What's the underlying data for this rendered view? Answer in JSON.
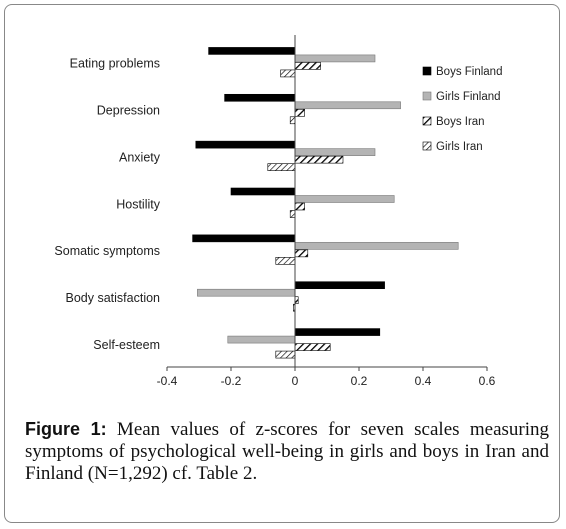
{
  "figure": {
    "label": "Figure 1:",
    "caption": " Mean values of z-scores for seven scales measuring symptoms of psychological well-being in girls and boys in Iran and Finland (N=1,292) cf. Table 2."
  },
  "colors": {
    "boys_finland": "#000000",
    "girls_finland": "#b4b4b4",
    "axis": "#444444"
  },
  "chart_data": {
    "type": "bar",
    "orientation": "horizontal",
    "categories": [
      "Eating problems",
      "Depression",
      "Anxiety",
      "Hostility",
      "Somatic symptoms",
      "Body satisfaction",
      "Self-esteem"
    ],
    "series": [
      {
        "name": "Boys Finland",
        "fill": "solid-black",
        "values": [
          -0.27,
          -0.22,
          -0.31,
          -0.2,
          -0.32,
          0.28,
          0.265
        ]
      },
      {
        "name": "Girls Finland",
        "fill": "solid-gray",
        "values": [
          0.25,
          0.33,
          0.25,
          0.31,
          0.51,
          -0.305,
          -0.21
        ]
      },
      {
        "name": "Boys Iran",
        "fill": "hatch-heavy",
        "values": [
          0.08,
          0.03,
          0.15,
          0.03,
          0.04,
          0.01,
          0.11
        ]
      },
      {
        "name": "Girls Iran",
        "fill": "hatch-light",
        "values": [
          -0.045,
          -0.015,
          -0.085,
          -0.015,
          -0.06,
          -0.005,
          -0.06
        ]
      }
    ],
    "xlim": [
      -0.4,
      0.6
    ],
    "xticks": [
      "-0.4",
      "-0.2",
      "0",
      "0.2",
      "0.4",
      "0.6"
    ],
    "xtick_values": [
      -0.4,
      -0.2,
      0,
      0.2,
      0.4,
      0.6
    ],
    "legend_position": "right",
    "grid": false
  }
}
